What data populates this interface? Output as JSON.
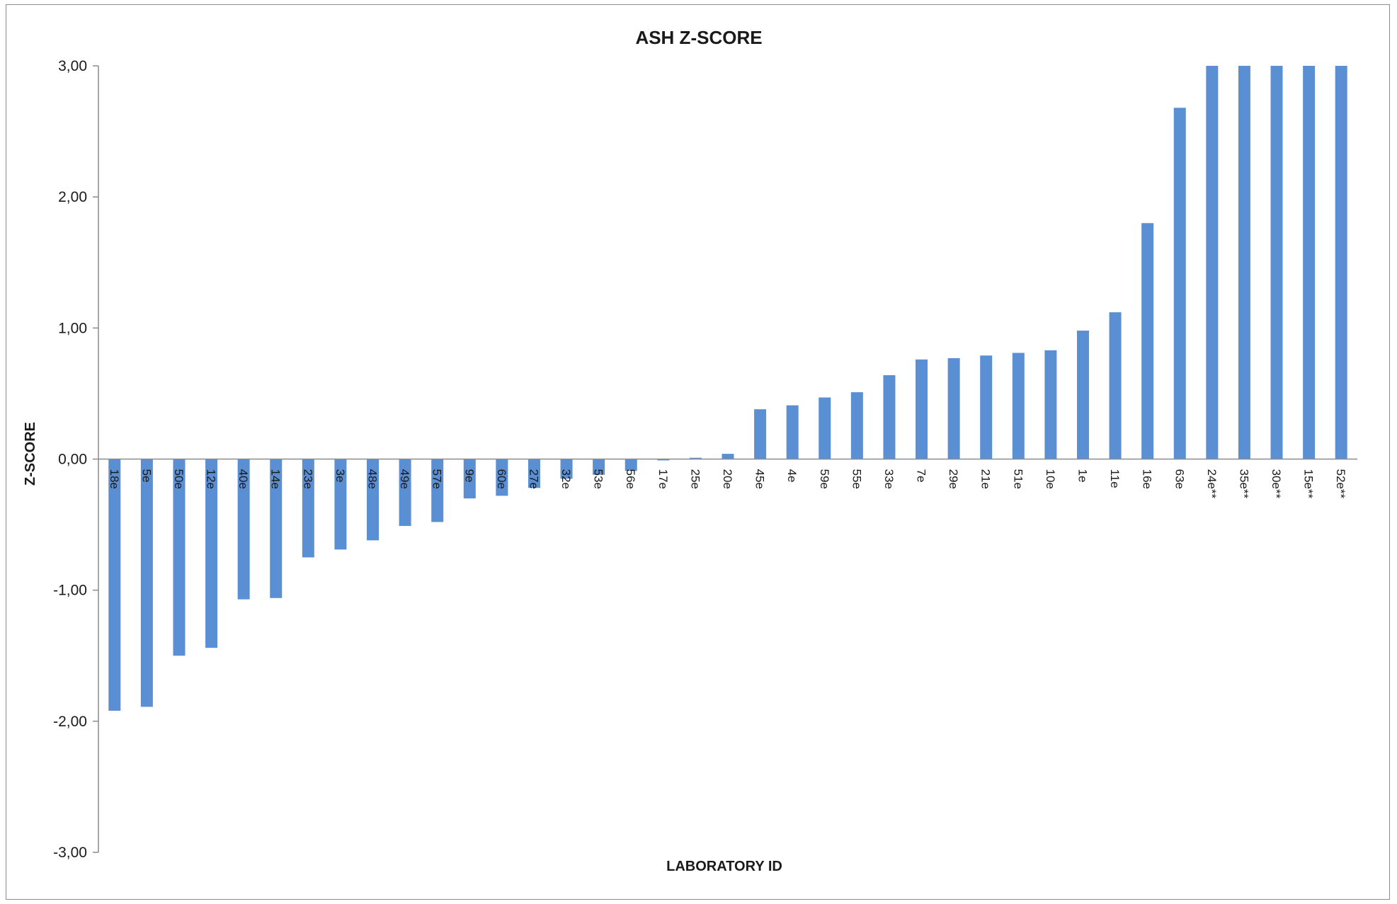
{
  "chart_data": {
    "type": "bar",
    "title": "ASH Z-SCORE",
    "xlabel": "LABORATORY ID",
    "ylabel": "Z-SCORE",
    "ylim": [
      -3,
      3
    ],
    "yticks": [
      "3,00",
      "2,00",
      "1,00",
      "0,00",
      "-1,00",
      "-2,00",
      "-3,00"
    ],
    "ytick_values": [
      3,
      2,
      1,
      0,
      -1,
      -2,
      -3
    ],
    "grid": false,
    "legend": "none",
    "bar_color": "#5b8fd4",
    "categories": [
      "18e",
      "5e",
      "50e",
      "12e",
      "40e",
      "14e",
      "23e",
      "3e",
      "48e",
      "49e",
      "57e",
      "9e",
      "60e",
      "27e",
      "32e",
      "53e",
      "56e",
      "17e",
      "25e",
      "20e",
      "45e",
      "4e",
      "59e",
      "55e",
      "33e",
      "7e",
      "29e",
      "21e",
      "51e",
      "10e",
      "1e",
      "11e",
      "16e",
      "63e",
      "24e**",
      "35e**",
      "30e**",
      "15e**",
      "52e**"
    ],
    "values": [
      -1.92,
      -1.89,
      -1.5,
      -1.44,
      -1.07,
      -1.06,
      -0.75,
      -0.69,
      -0.62,
      -0.51,
      -0.48,
      -0.3,
      -0.28,
      -0.22,
      -0.15,
      -0.12,
      -0.09,
      -0.01,
      0.01,
      0.04,
      0.38,
      0.41,
      0.47,
      0.51,
      0.64,
      0.76,
      0.77,
      0.79,
      0.81,
      0.83,
      0.98,
      1.12,
      1.8,
      2.68,
      3.0,
      3.0,
      3.0,
      3.0,
      3.0
    ]
  }
}
